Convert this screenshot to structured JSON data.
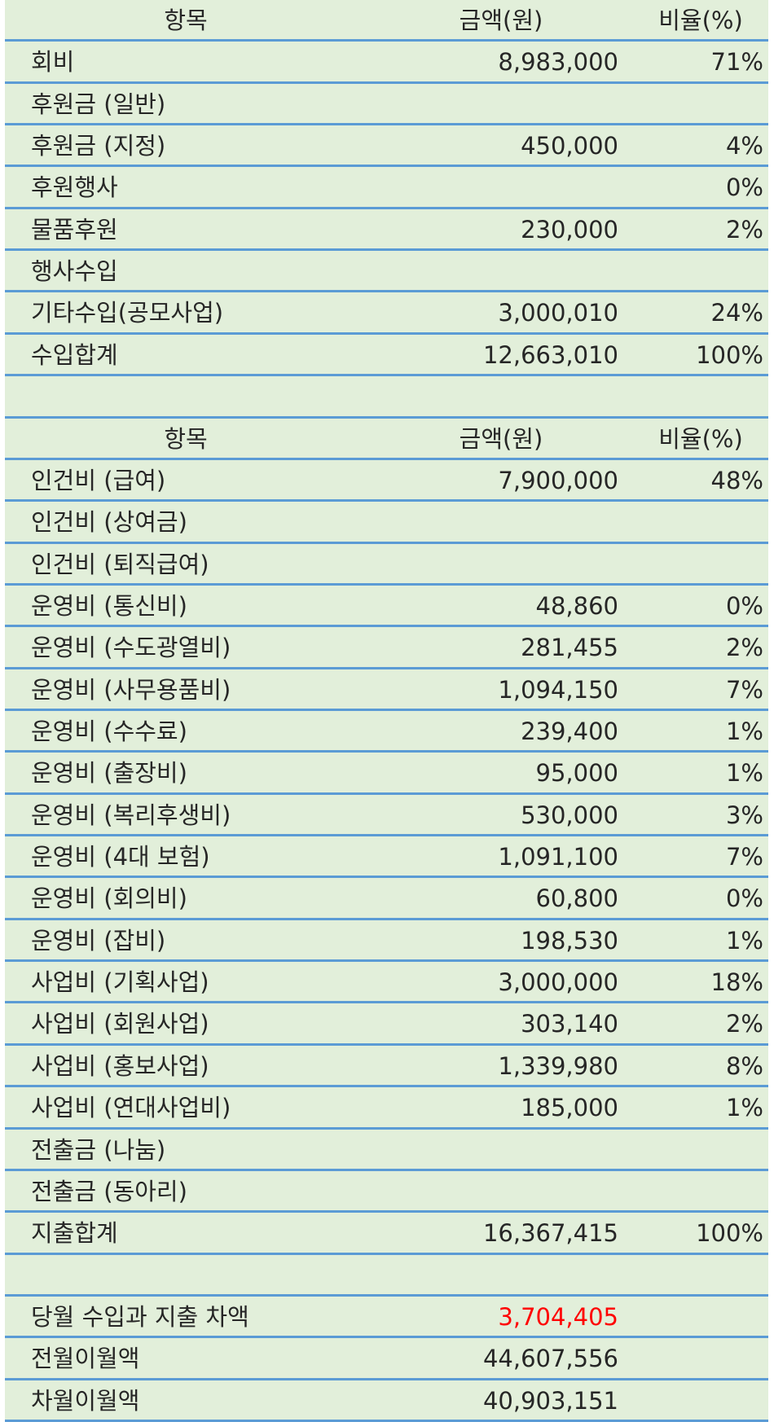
{
  "income": {
    "header": [
      "항목",
      "금액(원)",
      "비율(%)"
    ],
    "rows": [
      {
        "item": "회비",
        "amount": "8,983,000",
        "ratio": "71%"
      },
      {
        "item": "후원금 (일반)"
      },
      {
        "item": "후원금 (지정)",
        "amount": "450,000",
        "ratio": "4%"
      },
      {
        "item": "후원행사",
        "ratio": "0%"
      },
      {
        "item": "물품후원",
        "amount": "230,000",
        "ratio": "2%"
      },
      {
        "item": "행사수입"
      },
      {
        "item": "기타수입(공모사업)",
        "amount": "3,000,010",
        "ratio": "24%"
      },
      {
        "item": "수입합계",
        "amount": "12,663,010",
        "ratio": "100%"
      }
    ]
  },
  "expense": {
    "header": [
      "항목",
      "금액(원)",
      "비율(%)"
    ],
    "rows": [
      {
        "item": "인건비 (급여)",
        "amount": "7,900,000",
        "ratio": "48%"
      },
      {
        "item": "인건비 (상여금)"
      },
      {
        "item": "인건비 (퇴직급여)"
      },
      {
        "item": "운영비 (통신비)",
        "amount": "48,860",
        "ratio": "0%"
      },
      {
        "item": "운영비 (수도광열비)",
        "amount": "281,455",
        "ratio": "2%"
      },
      {
        "item": "운영비 (사무용품비)",
        "amount": "1,094,150",
        "ratio": "7%"
      },
      {
        "item": "운영비 (수수료)",
        "amount": "239,400",
        "ratio": "1%"
      },
      {
        "item": "운영비 (출장비)",
        "amount": "95,000",
        "ratio": "1%"
      },
      {
        "item": "운영비 (복리후생비)",
        "amount": "530,000",
        "ratio": "3%"
      },
      {
        "item": "운영비 (4대 보험)",
        "amount": "1,091,100",
        "ratio": "7%"
      },
      {
        "item": "운영비 (회의비)",
        "amount": "60,800",
        "ratio": "0%"
      },
      {
        "item": "운영비 (잡비)",
        "amount": "198,530",
        "ratio": "1%"
      },
      {
        "item": "사업비 (기획사업)",
        "amount": "3,000,000",
        "ratio": "18%"
      },
      {
        "item": "사업비 (회원사업)",
        "amount": "303,140",
        "ratio": "2%"
      },
      {
        "item": "사업비 (홍보사업)",
        "amount": "1,339,980",
        "ratio": "8%"
      },
      {
        "item": "사업비 (연대사업비)",
        "amount": "185,000",
        "ratio": "1%"
      },
      {
        "item": "전출금 (나눔)"
      },
      {
        "item": "전출금 (동아리)"
      },
      {
        "item": "지출합계",
        "amount": "16,367,415",
        "ratio": "100%"
      }
    ]
  },
  "summary": {
    "rows": [
      {
        "item": "당월 수입과 지출 차액",
        "amount": "3,704,405",
        "amount_color": "#ff0000"
      },
      {
        "item": "전월이월액",
        "amount": "44,607,556"
      },
      {
        "item": "차월이월액",
        "amount": "40,903,151"
      }
    ]
  }
}
